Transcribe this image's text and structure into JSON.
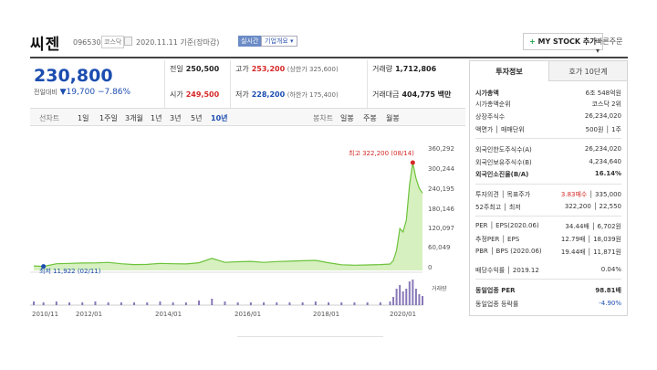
{
  "header": {
    "stock_name": "씨젠",
    "code": "096530",
    "market": "코스닥",
    "date": "2020.11.11  기준(장마감)",
    "realtime": "실시간",
    "overview": "기업개요 ▾",
    "mystock_plus": "+",
    "mystock": "MY STOCK 추가",
    "quick_order": "빠른주문 ▾"
  },
  "price": {
    "current": "230,800",
    "change_label": "전일대비",
    "change_value": "▼19,700",
    "change_pct": "−7.86%"
  },
  "quote": {
    "prev_close_label": "전일",
    "prev_close": "250,500",
    "high_label": "고가",
    "high": "253,200",
    "upper_limit": "(상한가 325,600)",
    "volume_label": "거래량",
    "volume": "1,712,806",
    "open_label": "시가",
    "open": "249,500",
    "low_label": "저가",
    "low": "228,200",
    "lower_limit": "(하한가 175,400)",
    "amount_label": "거래대금",
    "amount": "404,775 백만"
  },
  "period_bar": {
    "line_chart": "선차트",
    "periods": [
      "1일",
      "1주일",
      "3개월",
      "1년",
      "3년",
      "5년",
      "10년"
    ],
    "selected": "10년",
    "candle_label": "봉차트",
    "candles": [
      "일봉",
      "주봉",
      "월봉"
    ]
  },
  "chart_data": {
    "type": "area",
    "y_ticks": [
      "360,292",
      "300,244",
      "240,195",
      "180,146",
      "120,097",
      "60,049",
      "0"
    ],
    "ylim": [
      0,
      360292
    ],
    "x_tick_labels": [
      "2010/11",
      "2012/01",
      "2014/01",
      "2016/01",
      "2018/01",
      "2020/01"
    ],
    "high_annotation": "최고  322,200 (08/14)",
    "low_annotation": "최저  11,922 (02/11)",
    "volume_label": "거래량",
    "x": [
      "2010/11",
      "2011/02",
      "2011/06",
      "2011/10",
      "2012/02",
      "2012/06",
      "2012/10",
      "2013/02",
      "2013/06",
      "2013/10",
      "2014/02",
      "2014/06",
      "2014/10",
      "2015/02",
      "2015/06",
      "2015/10",
      "2016/02",
      "2016/06",
      "2016/10",
      "2017/02",
      "2017/06",
      "2017/10",
      "2018/02",
      "2018/06",
      "2018/10",
      "2019/02",
      "2019/06",
      "2019/10",
      "2020/01",
      "2020/02",
      "2020/03",
      "2020/04",
      "2020/05",
      "2020/06",
      "2020/07",
      "2020/08",
      "2020/09",
      "2020/10",
      "2020/11"
    ],
    "series": [
      {
        "values": [
          13500,
          11922,
          20000,
          21000,
          22000,
          22500,
          24000,
          20000,
          17500,
          18000,
          21000,
          20000,
          19500,
          23000,
          36000,
          24000,
          26000,
          27000,
          24000,
          26500,
          27500,
          29000,
          30000,
          23000,
          17000,
          15500,
          16500,
          17500,
          19000,
          30000,
          60000,
          125000,
          115000,
          150000,
          255000,
          322200,
          275000,
          245000,
          230800
        ]
      }
    ],
    "volume": [
      4,
      3,
      4,
      3,
      3,
      4,
      3,
      3,
      3,
      3,
      4,
      3,
      3,
      5,
      7,
      4,
      3,
      3,
      3,
      3,
      3,
      3,
      4,
      3,
      3,
      3,
      3,
      3,
      4,
      9,
      18,
      22,
      15,
      18,
      26,
      28,
      18,
      12,
      10
    ],
    "colors": {
      "fill": "#d7f0c0",
      "line": "#6cc23a",
      "high": "#d62828",
      "low": "#1c4db0",
      "volume": "#8878b8"
    }
  },
  "side": {
    "tab_invest": "투자정보",
    "tab_hoga": "호가 10단계",
    "rows": [
      {
        "k": "시가총액",
        "v": "6조 548억원",
        "style": "bold-k"
      },
      {
        "k": "시가총액순위",
        "v": "코스닥 2위"
      },
      {
        "k": "상장주식수",
        "v": "26,234,020"
      },
      {
        "k": "액면가 │ 매매단위",
        "v": "500원 │ 1주"
      },
      {
        "k": "외국인한도주식수(A)",
        "v": "26,234,020"
      },
      {
        "k": "외국인보유주식수(B)",
        "v": "4,234,640"
      },
      {
        "k": "외국인소진율(B/A)",
        "v": "16.14%",
        "style": "bold"
      },
      {
        "k": "투자의견 │ 목표주가",
        "v_red": "3.83매수",
        "v": " │ 335,000"
      },
      {
        "k": "52주최고 │ 최저",
        "v": "322,200 │ 22,550"
      },
      {
        "k": "PER │ EPS(2020.06)",
        "v": "34.44배 │ 6,702원"
      },
      {
        "k": "추정PER │ EPS",
        "v": "12.79배 │ 18,039원"
      },
      {
        "k": "PBR │ BPS (2020.06)",
        "v": "19.44배 │ 11,871원"
      },
      {
        "k": "배당수익률 │ 2019.12",
        "v": "0.04%"
      },
      {
        "k": "동일업종 PER",
        "v": "98.81배",
        "style": "bold"
      },
      {
        "k": "동일업종 등락률",
        "v": "-4.90%",
        "style": "blue"
      }
    ]
  }
}
